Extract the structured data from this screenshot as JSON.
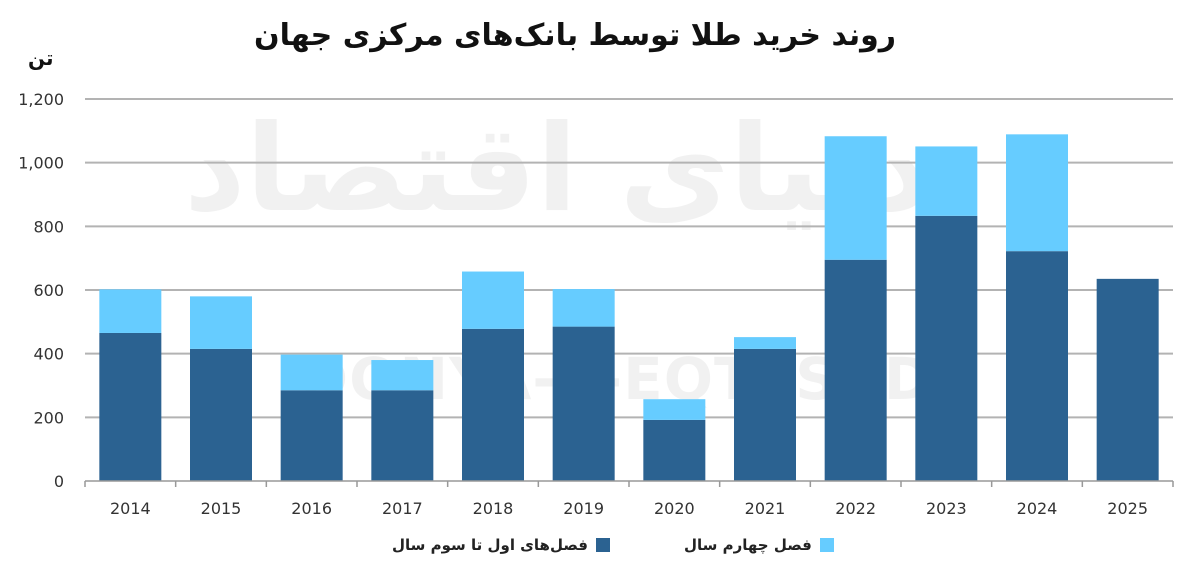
{
  "chart_data": {
    "type": "bar",
    "stacked": true,
    "title": "روند خرید طلا توسط بانک‌های مرکزی جهان",
    "ylabel": "تن",
    "xlabel": "",
    "ylim": [
      0,
      1200
    ],
    "yticks": [
      0,
      200,
      400,
      600,
      800,
      1000,
      1200
    ],
    "ytick_labels": [
      "0",
      "200",
      "400",
      "600",
      "800",
      "1,000",
      "1,200"
    ],
    "grid": "horizontal",
    "legend_position": "bottom",
    "categories": [
      "2014",
      "2015",
      "2016",
      "2017",
      "2018",
      "2019",
      "2020",
      "2021",
      "2022",
      "2023",
      "2024",
      "2025"
    ],
    "series": [
      {
        "name": "فصل‌های اول تا سوم سال",
        "color": "#2b6291",
        "values": [
          465,
          415,
          285,
          285,
          478,
          485,
          192,
          415,
          695,
          833,
          722,
          635
        ]
      },
      {
        "name": "فصل چهارم سال",
        "color": "#66ccff",
        "values": [
          137,
          165,
          112,
          95,
          180,
          118,
          65,
          37,
          388,
          218,
          367,
          0
        ]
      }
    ]
  },
  "watermark": {
    "fa": "دنیای اقتصاد",
    "en": "DONYA-E-EQTESAD"
  }
}
